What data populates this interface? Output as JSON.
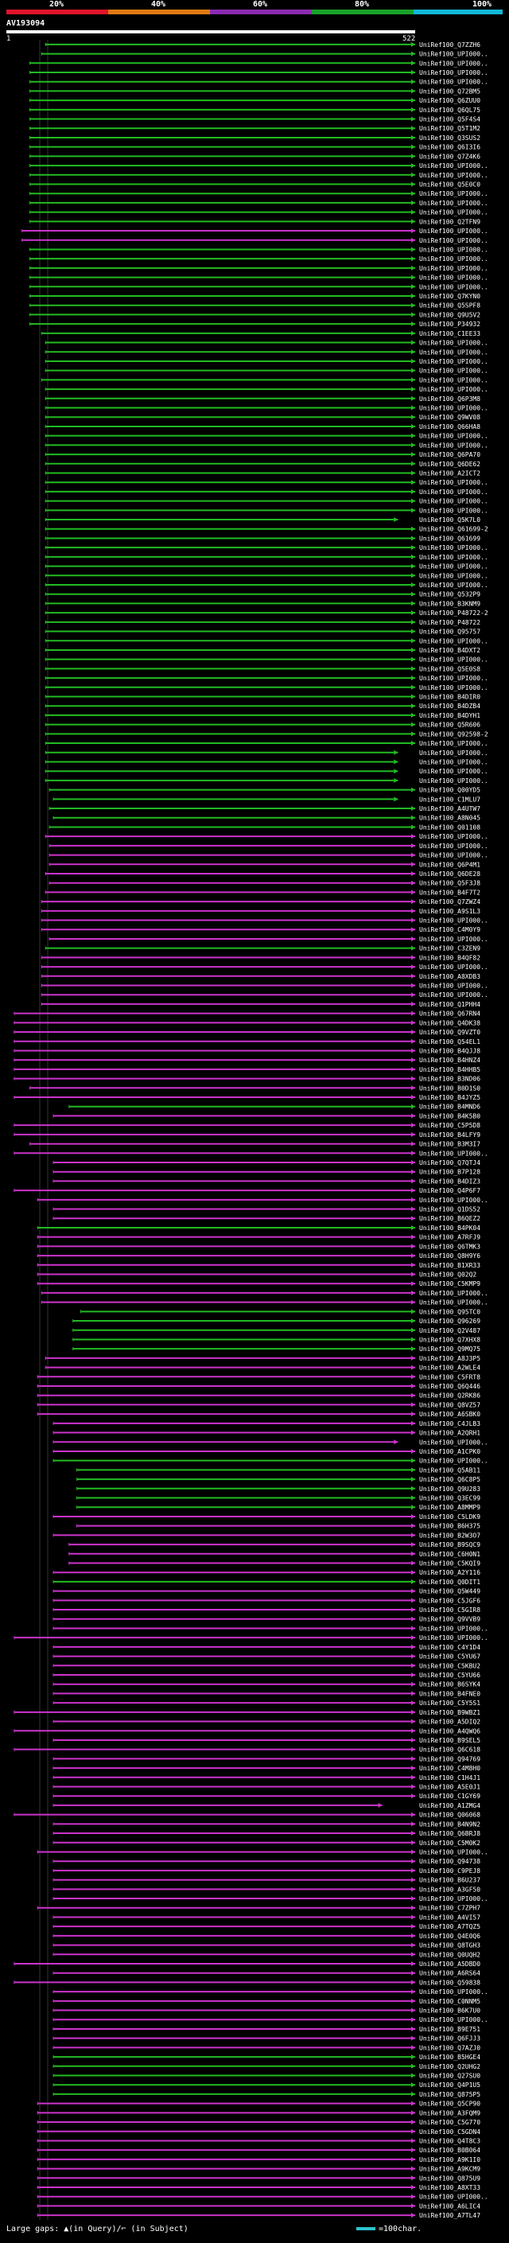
{
  "legend": {
    "ticks": [
      "20%",
      "40%",
      "60%",
      "80%",
      "100%"
    ],
    "colors": [
      "#e0142a",
      "#e07a12",
      "#8a2bb0",
      "#1aa12a",
      "#11b8d8"
    ]
  },
  "query": {
    "title": "AV193094",
    "start_label": "1",
    "end_label": "522"
  },
  "footer": {
    "large_gaps_label": "Large gaps: ▲(in Query)/⌐ (in Subject)",
    "scale_label": "=100char."
  },
  "chart_data": {
    "type": "alignment",
    "query_length": 522,
    "colors": {
      "green": "#22bb22",
      "magenta": "#cc33cc",
      "query_bar": "#ffffff"
    },
    "hits": [
      [
        "UniRef100_Q7ZZH6",
        50,
        522,
        "g"
      ],
      [
        "UniRef100_UPI000..",
        45,
        522,
        "g"
      ],
      [
        "UniRef100_UPI000..",
        30,
        522,
        "g"
      ],
      [
        "UniRef100_UPI000..",
        30,
        522,
        "g"
      ],
      [
        "UniRef100_UPI000..",
        30,
        522,
        "g"
      ],
      [
        "UniRef100_Q72BM5",
        30,
        522,
        "g"
      ],
      [
        "UniRef100_Q6ZUU0",
        30,
        522,
        "g"
      ],
      [
        "UniRef100_Q6QL75",
        30,
        522,
        "g"
      ],
      [
        "UniRef100_Q5F4S4",
        30,
        522,
        "g"
      ],
      [
        "UniRef100_Q5T1M2",
        30,
        522,
        "g"
      ],
      [
        "UniRef100_Q3SUS2",
        30,
        522,
        "g"
      ],
      [
        "UniRef100_Q6I3I6",
        30,
        522,
        "g"
      ],
      [
        "UniRef100_Q7Z4K6",
        30,
        522,
        "g"
      ],
      [
        "UniRef100_UPI000..",
        30,
        522,
        "g"
      ],
      [
        "UniRef100_UPI000..",
        30,
        522,
        "g"
      ],
      [
        "UniRef100_Q5E0C0",
        30,
        522,
        "g"
      ],
      [
        "UniRef100_UPI000..",
        30,
        522,
        "g"
      ],
      [
        "UniRef100_UPI000..",
        30,
        522,
        "g"
      ],
      [
        "UniRef100_UPI000..",
        30,
        522,
        "g"
      ],
      [
        "UniRef100_Q2TFN9",
        30,
        522,
        "g"
      ],
      [
        "UniRef100_UPI000..",
        20,
        522,
        "m"
      ],
      [
        "UniRef100_UPI000..",
        20,
        522,
        "m"
      ],
      [
        "UniRef100_UPI000..",
        30,
        522,
        "g"
      ],
      [
        "UniRef100_UPI000..",
        30,
        522,
        "g"
      ],
      [
        "UniRef100_UPI000..",
        30,
        522,
        "g"
      ],
      [
        "UniRef100_UPI000..",
        30,
        522,
        "g"
      ],
      [
        "UniRef100_UPI000..",
        30,
        522,
        "g"
      ],
      [
        "UniRef100_Q7KYN0",
        30,
        522,
        "g"
      ],
      [
        "UniRef100_Q5SPF8",
        30,
        522,
        "g"
      ],
      [
        "UniRef100_Q9U5V2",
        30,
        522,
        "g"
      ],
      [
        "UniRef100_P34932",
        30,
        522,
        "g"
      ],
      [
        "UniRef100_C1EE33",
        45,
        522,
        "g"
      ],
      [
        "UniRef100_UPI000..",
        50,
        522,
        "g"
      ],
      [
        "UniRef100_UPI000..",
        50,
        522,
        "g"
      ],
      [
        "UniRef100_UPI000..",
        50,
        522,
        "g"
      ],
      [
        "UniRef100_UPI000..",
        50,
        522,
        "g"
      ],
      [
        "UniRef100_UPI000..",
        45,
        522,
        "g"
      ],
      [
        "UniRef100_UPI000..",
        50,
        522,
        "g"
      ],
      [
        "UniRef100_Q6P3M8",
        50,
        522,
        "g"
      ],
      [
        "UniRef100_UPI000..",
        50,
        522,
        "g"
      ],
      [
        "UniRef100_Q9WV08",
        50,
        522,
        "g"
      ],
      [
        "UniRef100_Q66HA8",
        50,
        522,
        "g"
      ],
      [
        "UniRef100_UPI000..",
        50,
        522,
        "g"
      ],
      [
        "UniRef100_UPI000..",
        50,
        522,
        "g"
      ],
      [
        "UniRef100_Q6PA70",
        50,
        522,
        "g"
      ],
      [
        "UniRef100_Q6DE62",
        50,
        522,
        "g"
      ],
      [
        "UniRef100_A2ICT2",
        50,
        522,
        "g"
      ],
      [
        "UniRef100_UPI000..",
        50,
        522,
        "g"
      ],
      [
        "UniRef100_UPI000..",
        50,
        522,
        "g"
      ],
      [
        "UniRef100_UPI000..",
        50,
        522,
        "g"
      ],
      [
        "UniRef100_UPI000..",
        50,
        522,
        "g"
      ],
      [
        "UniRef100_Q5K7L0",
        50,
        500,
        "g"
      ],
      [
        "UniRef100_Q61699-2",
        50,
        522,
        "g"
      ],
      [
        "UniRef100_Q61699",
        50,
        522,
        "g"
      ],
      [
        "UniRef100_UPI000..",
        50,
        522,
        "g"
      ],
      [
        "UniRef100_UPI000..",
        50,
        522,
        "g"
      ],
      [
        "UniRef100_UPI000..",
        50,
        522,
        "g"
      ],
      [
        "UniRef100_UPI000..",
        50,
        522,
        "g"
      ],
      [
        "UniRef100_UPI000..",
        50,
        522,
        "g"
      ],
      [
        "UniRef100_Q532P9",
        50,
        522,
        "g"
      ],
      [
        "UniRef100_B3KNM9",
        50,
        522,
        "g"
      ],
      [
        "UniRef100_P48722-2",
        50,
        522,
        "g"
      ],
      [
        "UniRef100_P48722",
        50,
        522,
        "g"
      ],
      [
        "UniRef100_Q95757",
        50,
        522,
        "g"
      ],
      [
        "UniRef100_UPI000..",
        50,
        522,
        "g"
      ],
      [
        "UniRef100_B4DXT2",
        50,
        522,
        "g"
      ],
      [
        "UniRef100_UPI000..",
        50,
        522,
        "g"
      ],
      [
        "UniRef100_Q5E0S8",
        50,
        522,
        "g"
      ],
      [
        "UniRef100_UPI000..",
        50,
        522,
        "g"
      ],
      [
        "UniRef100_UPI000..",
        50,
        522,
        "g"
      ],
      [
        "UniRef100_B4DIR0",
        50,
        522,
        "g"
      ],
      [
        "UniRef100_B4DZB4",
        50,
        522,
        "g"
      ],
      [
        "UniRef100_B4DYH1",
        50,
        522,
        "g"
      ],
      [
        "UniRef100_Q5R606",
        50,
        522,
        "g"
      ],
      [
        "UniRef100_Q92598-2",
        50,
        522,
        "g"
      ],
      [
        "UniRef100_UPI000..",
        50,
        522,
        "g"
      ],
      [
        "UniRef100_UPI000..",
        50,
        500,
        "g"
      ],
      [
        "UniRef100_UPI000..",
        50,
        500,
        "g"
      ],
      [
        "UniRef100_UPI000..",
        50,
        500,
        "g"
      ],
      [
        "UniRef100_UPI000..",
        50,
        500,
        "g"
      ],
      [
        "UniRef100_Q00YD5",
        55,
        522,
        "g"
      ],
      [
        "UniRef100_C1MLU7",
        60,
        500,
        "g"
      ],
      [
        "UniRef100_A4UTW7",
        55,
        522,
        "g"
      ],
      [
        "UniRef100_A8N045",
        60,
        522,
        "g"
      ],
      [
        "UniRef100_Q01108",
        55,
        522,
        "g"
      ],
      [
        "UniRef100_UPI000..",
        50,
        522,
        "m"
      ],
      [
        "UniRef100_UPI000..",
        55,
        522,
        "m"
      ],
      [
        "UniRef100_UPI000..",
        55,
        522,
        "m"
      ],
      [
        "UniRef100_Q6P4M1",
        55,
        522,
        "m"
      ],
      [
        "UniRef100_Q6DE28",
        50,
        522,
        "m"
      ],
      [
        "UniRef100_Q5F3J8",
        55,
        522,
        "m"
      ],
      [
        "UniRef100_B4F7T2",
        50,
        522,
        "m"
      ],
      [
        "UniRef100_Q7ZWZ4",
        45,
        522,
        "m"
      ],
      [
        "UniRef100_A9S1L3",
        45,
        522,
        "m"
      ],
      [
        "UniRef100_UPI000..",
        45,
        522,
        "m"
      ],
      [
        "UniRef100_C4M0Y9",
        45,
        522,
        "m"
      ],
      [
        "UniRef100_UPI000..",
        55,
        522,
        "m"
      ],
      [
        "UniRef100_C3ZEN9",
        50,
        522,
        "g"
      ],
      [
        "UniRef100_B4QF82",
        45,
        522,
        "m"
      ],
      [
        "UniRef100_UPI000..",
        45,
        522,
        "m"
      ],
      [
        "UniRef100_A8XDB3",
        45,
        522,
        "m"
      ],
      [
        "UniRef100_UPI000..",
        45,
        522,
        "m"
      ],
      [
        "UniRef100_UPI000..",
        45,
        522,
        "m"
      ],
      [
        "UniRef100_Q1PHH4",
        45,
        522,
        "m"
      ],
      [
        "UniRef100_Q67RN4",
        10,
        522,
        "m"
      ],
      [
        "UniRef100_Q4DK38",
        10,
        522,
        "m"
      ],
      [
        "UniRef100_Q9VZT0",
        10,
        522,
        "m"
      ],
      [
        "UniRef100_Q54EL1",
        10,
        522,
        "m"
      ],
      [
        "UniRef100_B4QJJ8",
        10,
        522,
        "m"
      ],
      [
        "UniRef100_B4HNZ4",
        10,
        522,
        "m"
      ],
      [
        "UniRef100_B4HHB5",
        10,
        522,
        "m"
      ],
      [
        "UniRef100_B3ND06",
        10,
        522,
        "m"
      ],
      [
        "UniRef100_B0D1S0",
        30,
        522,
        "m"
      ],
      [
        "UniRef100_B4JYZ5",
        10,
        522,
        "m"
      ],
      [
        "UniRef100_B4MND6",
        80,
        522,
        "g"
      ],
      [
        "UniRef100_B4K5B0",
        60,
        522,
        "m"
      ],
      [
        "UniRef100_C5P5D8",
        10,
        522,
        "m"
      ],
      [
        "UniRef100_B4LFY9",
        10,
        522,
        "m"
      ],
      [
        "UniRef100_B3M3I7",
        30,
        522,
        "m"
      ],
      [
        "UniRef100_UPI000..",
        10,
        522,
        "m"
      ],
      [
        "UniRef100_Q7QTJ4",
        60,
        522,
        "m"
      ],
      [
        "UniRef100_B7P128",
        60,
        522,
        "m"
      ],
      [
        "UniRef100_B4DIZ3",
        60,
        522,
        "m"
      ],
      [
        "UniRef100_Q4P6F7",
        10,
        522,
        "m"
      ],
      [
        "UniRef100_UPI000..",
        40,
        522,
        "m"
      ],
      [
        "UniRef100_Q1DS52",
        60,
        522,
        "m"
      ],
      [
        "UniRef100_B6QEZ2",
        60,
        522,
        "m"
      ],
      [
        "UniRef100_B4PK04",
        40,
        522,
        "g"
      ],
      [
        "UniRef100_A7RFJ9",
        40,
        522,
        "m"
      ],
      [
        "UniRef100_Q6TMK3",
        40,
        522,
        "m"
      ],
      [
        "UniRef100_Q8H9Y6",
        40,
        522,
        "m"
      ],
      [
        "UniRef100_B1XR33",
        40,
        522,
        "m"
      ],
      [
        "UniRef100_Q02Q2",
        40,
        522,
        "m"
      ],
      [
        "UniRef100_C5KMP9",
        40,
        522,
        "m"
      ],
      [
        "UniRef100_UPI000..",
        45,
        522,
        "m"
      ],
      [
        "UniRef100_UPI000..",
        45,
        522,
        "m"
      ],
      [
        "UniRef100_Q95TC0",
        95,
        522,
        "g"
      ],
      [
        "UniRef100_Q96269",
        85,
        522,
        "g"
      ],
      [
        "UniRef100_Q2V487",
        85,
        522,
        "g"
      ],
      [
        "UniRef100_Q7XHX8",
        85,
        522,
        "g"
      ],
      [
        "UniRef100_Q9MQ75",
        85,
        522,
        "g"
      ],
      [
        "UniRef100_A8J3P5",
        50,
        522,
        "m"
      ],
      [
        "UniRef100_A2WLE4",
        50,
        522,
        "m"
      ],
      [
        "UniRef100_C5FRT8",
        40,
        522,
        "m"
      ],
      [
        "UniRef100_Q6Q446",
        40,
        522,
        "m"
      ],
      [
        "UniRef100_Q2RK86",
        40,
        522,
        "m"
      ],
      [
        "UniRef100_Q8VZ57",
        40,
        522,
        "m"
      ],
      [
        "UniRef100_A6SBK0",
        40,
        522,
        "m"
      ],
      [
        "UniRef100_C4JLB3",
        60,
        522,
        "m"
      ],
      [
        "UniRef100_A2QRH1",
        60,
        522,
        "m"
      ],
      [
        "UniRef100_UPI000..",
        60,
        500,
        "m"
      ],
      [
        "UniRef100_A1CPK0",
        60,
        522,
        "m"
      ],
      [
        "UniRef100_UPI000..",
        60,
        522,
        "g"
      ],
      [
        "UniRef100_Q5AB11",
        90,
        522,
        "g"
      ],
      [
        "UniRef100_Q6C8P5",
        90,
        522,
        "g"
      ],
      [
        "UniRef100_Q9U283",
        90,
        522,
        "g"
      ],
      [
        "UniRef100_Q3EC99",
        90,
        522,
        "g"
      ],
      [
        "UniRef100_A8MMP9",
        90,
        522,
        "g"
      ],
      [
        "UniRef100_C5LDK9",
        60,
        522,
        "m"
      ],
      [
        "UniRef100_B6H375",
        90,
        522,
        "m"
      ],
      [
        "UniRef100_B2W3O7",
        60,
        522,
        "m"
      ],
      [
        "UniRef100_B9SQC9",
        80,
        522,
        "m"
      ],
      [
        "UniRef100_C6H0N1",
        80,
        522,
        "m"
      ],
      [
        "UniRef100_C5KQI9",
        80,
        522,
        "m"
      ],
      [
        "UniRef100_A2Y116",
        60,
        522,
        "m"
      ],
      [
        "UniRef100_Q0DIT1",
        60,
        522,
        "g"
      ],
      [
        "UniRef100_Q5W449",
        60,
        522,
        "m"
      ],
      [
        "UniRef100_C5JGF6",
        60,
        522,
        "m"
      ],
      [
        "UniRef100_C5GIR8",
        60,
        522,
        "m"
      ],
      [
        "UniRef100_Q9VVB9",
        60,
        522,
        "m"
      ],
      [
        "UniRef100_UPI000..",
        60,
        522,
        "m"
      ],
      [
        "UniRef100_UPI000..",
        10,
        522,
        "m"
      ],
      [
        "UniRef100_C4Y1D4",
        60,
        522,
        "m"
      ],
      [
        "UniRef100_C5YU67",
        60,
        522,
        "m"
      ],
      [
        "UniRef100_C5KBU2",
        60,
        522,
        "m"
      ],
      [
        "UniRef100_C5YU66",
        60,
        522,
        "m"
      ],
      [
        "UniRef100_B6SYK4",
        60,
        522,
        "m"
      ],
      [
        "UniRef100_B4FNE0",
        60,
        522,
        "m"
      ],
      [
        "UniRef100_C5Y5S1",
        60,
        522,
        "m"
      ],
      [
        "UniRef100_B9WBZ1",
        10,
        522,
        "m"
      ],
      [
        "UniRef100_A5DIQ2",
        60,
        522,
        "m"
      ],
      [
        "UniRef100_A4QWQ6",
        10,
        522,
        "m"
      ],
      [
        "UniRef100_B9SEL5",
        60,
        522,
        "m"
      ],
      [
        "UniRef100_Q6C618",
        10,
        522,
        "m"
      ],
      [
        "UniRef100_Q94769",
        60,
        522,
        "m"
      ],
      [
        "UniRef100_C4M8H0",
        60,
        522,
        "m"
      ],
      [
        "UniRef100_C1H4J1",
        60,
        522,
        "m"
      ],
      [
        "UniRef100_A5E0J1",
        60,
        522,
        "m"
      ],
      [
        "UniRef100_C1GY69",
        60,
        522,
        "m"
      ],
      [
        "UniRef100_A1ZMG4",
        60,
        480,
        "m"
      ],
      [
        "UniRef100_Q06068",
        10,
        522,
        "m"
      ],
      [
        "UniRef100_B4N9N2",
        60,
        522,
        "m"
      ],
      [
        "UniRef100_Q6BRJ8",
        60,
        522,
        "m"
      ],
      [
        "UniRef100_C5M0K2",
        60,
        522,
        "m"
      ],
      [
        "UniRef100_UPI000..",
        40,
        522,
        "m"
      ],
      [
        "UniRef100_Q94738",
        60,
        522,
        "m"
      ],
      [
        "UniRef100_C9PEJ8",
        60,
        522,
        "m"
      ],
      [
        "UniRef100_B6U237",
        60,
        522,
        "m"
      ],
      [
        "UniRef100_A3GF50",
        60,
        522,
        "m"
      ],
      [
        "UniRef100_UPI000..",
        60,
        522,
        "m"
      ],
      [
        "UniRef100_C7ZPH7",
        40,
        522,
        "m"
      ],
      [
        "UniRef100_A4VI57",
        60,
        522,
        "m"
      ],
      [
        "UniRef100_A7TQZ5",
        60,
        522,
        "m"
      ],
      [
        "UniRef100_Q4E0Q6",
        60,
        522,
        "m"
      ],
      [
        "UniRef100_Q8TGH3",
        60,
        522,
        "m"
      ],
      [
        "UniRef100_Q0UQH2",
        60,
        522,
        "m"
      ],
      [
        "UniRef100_A5DBD0",
        10,
        522,
        "m"
      ],
      [
        "UniRef100_A6RS64",
        60,
        522,
        "m"
      ],
      [
        "UniRef100_Q59838",
        10,
        522,
        "m"
      ],
      [
        "UniRef100_UPI000..",
        60,
        522,
        "m"
      ],
      [
        "UniRef100_C0NNM5",
        60,
        522,
        "m"
      ],
      [
        "UniRef100_B6K7U0",
        60,
        522,
        "m"
      ],
      [
        "UniRef100_UPI000..",
        60,
        522,
        "m"
      ],
      [
        "UniRef100_B9E751",
        60,
        522,
        "m"
      ],
      [
        "UniRef100_Q6FJJ3",
        60,
        522,
        "m"
      ],
      [
        "UniRef100_Q7AZJ0",
        60,
        522,
        "m"
      ],
      [
        "UniRef100_B5HGE4",
        60,
        522,
        "g"
      ],
      [
        "UniRef100_Q2UHG2",
        60,
        522,
        "g"
      ],
      [
        "UniRef100_Q27SU0",
        60,
        522,
        "g"
      ],
      [
        "UniRef100_Q4P1U5",
        60,
        522,
        "g"
      ],
      [
        "UniRef100_Q875P5",
        60,
        522,
        "g"
      ],
      [
        "UniRef100_Q5CP90",
        40,
        522,
        "m"
      ],
      [
        "UniRef100_A3FQM9",
        40,
        522,
        "m"
      ],
      [
        "UniRef100_C5G770",
        40,
        522,
        "m"
      ],
      [
        "UniRef100_C5GDN4",
        40,
        522,
        "m"
      ],
      [
        "UniRef100_Q4T8C3",
        40,
        522,
        "m"
      ],
      [
        "UniRef100_B0B064",
        40,
        522,
        "m"
      ],
      [
        "UniRef100_A9K1I0",
        40,
        522,
        "m"
      ],
      [
        "UniRef100_A9KCM9",
        40,
        522,
        "m"
      ],
      [
        "UniRef100_Q875U9",
        40,
        522,
        "m"
      ],
      [
        "UniRef100_A8XT33",
        40,
        522,
        "m"
      ],
      [
        "UniRef100_UPI000..",
        40,
        522,
        "m"
      ],
      [
        "UniRef100_A6LIC4",
        40,
        522,
        "m"
      ],
      [
        "UniRef100_A7TL47",
        40,
        522,
        "m"
      ]
    ]
  }
}
